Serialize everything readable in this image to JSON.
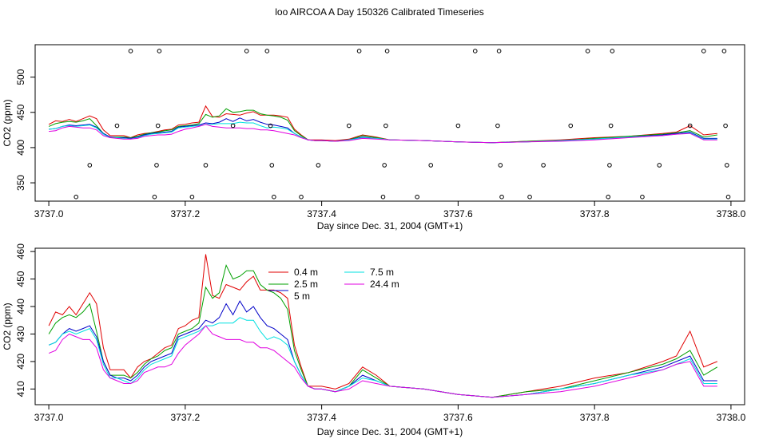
{
  "title": "loo AIRCOA A  Day 150326  Calibrated Timeseries",
  "colors": {
    "0.4 m": "#e00000",
    "2.5 m": "#00a000",
    "5 m": "#0000c8",
    "7.5 m": "#00e0e0",
    "24.4 m": "#e000e0",
    "markers": "#000000"
  },
  "chart_data": [
    {
      "type": "line",
      "panel": "top",
      "xlabel": "Day since Dec. 31, 2004 (GMT+1)",
      "ylabel": "CO2 (ppm)",
      "xlim": [
        3736.98,
        3738.02
      ],
      "ylim": [
        324,
        546
      ],
      "xticks": [
        3737.0,
        3737.2,
        3737.4,
        3737.6,
        3737.8,
        3738.0
      ],
      "xtick_labels": [
        "3737.0",
        "3737.2",
        "3737.4",
        "3737.6",
        "3737.8",
        "3738.0"
      ],
      "yticks": [
        350,
        400,
        450,
        500
      ],
      "ytick_labels": [
        "350",
        "400",
        "450",
        "500"
      ],
      "legend": false,
      "x": [
        3737.0,
        3737.01,
        3737.02,
        3737.03,
        3737.04,
        3737.05,
        3737.06,
        3737.07,
        3737.08,
        3737.09,
        3737.1,
        3737.11,
        3737.12,
        3737.13,
        3737.14,
        3737.15,
        3737.16,
        3737.17,
        3737.18,
        3737.19,
        3737.2,
        3737.21,
        3737.22,
        3737.23,
        3737.24,
        3737.25,
        3737.26,
        3737.27,
        3737.28,
        3737.29,
        3737.3,
        3737.31,
        3737.32,
        3737.33,
        3737.34,
        3737.35,
        3737.36,
        3737.37,
        3737.38,
        3737.39,
        3737.4,
        3737.42,
        3737.44,
        3737.46,
        3737.48,
        3737.5,
        3737.55,
        3737.6,
        3737.65,
        3737.7,
        3737.75,
        3737.8,
        3737.85,
        3737.9,
        3737.92,
        3737.94,
        3737.96,
        3737.98
      ],
      "series": [
        {
          "name": "0.4 m",
          "values": [
            433,
            438,
            437,
            440,
            437,
            441,
            445,
            441,
            425,
            417,
            417,
            417,
            414,
            418,
            420,
            421,
            423,
            425,
            426,
            432,
            433,
            435,
            436,
            459,
            444,
            443,
            448,
            447,
            446,
            449,
            451,
            446,
            446,
            446,
            445,
            443,
            426,
            418,
            411,
            411,
            411,
            410,
            412,
            418,
            415,
            411,
            410,
            408,
            407,
            409,
            411,
            414,
            416,
            420,
            422,
            431,
            418,
            420
          ]
        },
        {
          "name": "2.5 m",
          "values": [
            430,
            434,
            436,
            437,
            436,
            438,
            441,
            431,
            420,
            415,
            415,
            415,
            414,
            416,
            419,
            421,
            422,
            424,
            425,
            430,
            431,
            432,
            434,
            447,
            443,
            445,
            455,
            450,
            451,
            453,
            453,
            448,
            446,
            445,
            443,
            439,
            424,
            417,
            411,
            410,
            410,
            409,
            411,
            417,
            414,
            411,
            410,
            408,
            407,
            409,
            410,
            413,
            416,
            419,
            421,
            424,
            415,
            418
          ]
        },
        {
          "name": "5 m",
          "values": [
            426,
            427,
            430,
            432,
            431,
            432,
            433,
            429,
            420,
            415,
            414,
            414,
            413,
            415,
            418,
            420,
            421,
            422,
            423,
            429,
            430,
            431,
            432,
            435,
            434,
            436,
            441,
            437,
            442,
            438,
            440,
            436,
            433,
            432,
            430,
            428,
            420,
            415,
            411,
            410,
            410,
            409,
            411,
            415,
            413,
            411,
            410,
            408,
            407,
            408,
            410,
            412,
            415,
            418,
            420,
            422,
            413,
            413
          ]
        },
        {
          "name": "7.5 m",
          "values": [
            426,
            427,
            430,
            431,
            430,
            431,
            432,
            428,
            419,
            414,
            414,
            413,
            412,
            414,
            417,
            419,
            420,
            421,
            422,
            428,
            429,
            430,
            431,
            433,
            433,
            434,
            434,
            434,
            436,
            435,
            435,
            431,
            428,
            429,
            428,
            426,
            420,
            415,
            411,
            410,
            410,
            409,
            411,
            414,
            413,
            411,
            410,
            408,
            407,
            408,
            410,
            412,
            415,
            417,
            419,
            421,
            412,
            412
          ]
        },
        {
          "name": "24.4 m",
          "values": [
            423,
            424,
            428,
            430,
            429,
            428,
            428,
            425,
            417,
            414,
            413,
            412,
            412,
            413,
            416,
            417,
            418,
            418,
            419,
            423,
            426,
            428,
            430,
            433,
            430,
            429,
            428,
            428,
            428,
            427,
            427,
            425,
            425,
            424,
            422,
            420,
            418,
            414,
            411,
            410,
            410,
            409,
            410,
            413,
            412,
            411,
            410,
            408,
            407,
            408,
            409,
            411,
            414,
            417,
            419,
            420,
            411,
            411
          ]
        }
      ],
      "markers": {
        "x": [
          3737.04,
          3737.06,
          3737.1,
          3737.12,
          3737.155,
          3737.158,
          3737.16,
          3737.162,
          3737.21,
          3737.23,
          3737.27,
          3737.29,
          3737.32,
          3737.325,
          3737.327,
          3737.33,
          3737.37,
          3737.395,
          3737.44,
          3737.455,
          3737.49,
          3737.492,
          3737.494,
          3737.496,
          3737.54,
          3737.56,
          3737.6,
          3737.625,
          3737.66,
          3737.658,
          3737.662,
          3737.664,
          3737.705,
          3737.725,
          3737.765,
          3737.79,
          3737.82,
          3737.822,
          3737.824,
          3737.826,
          3737.87,
          3737.895,
          3737.94,
          3737.96,
          3737.99,
          3737.992,
          3737.994,
          3737.996
        ],
        "y": [
          330,
          375,
          431,
          537,
          330,
          375,
          431,
          537,
          330,
          375,
          431,
          537,
          537,
          431,
          375,
          330,
          330,
          375,
          431,
          537,
          330,
          375,
          431,
          537,
          330,
          375,
          431,
          537,
          537,
          431,
          375,
          330,
          330,
          375,
          431,
          537,
          330,
          375,
          431,
          537,
          330,
          375,
          431,
          537,
          537,
          431,
          375,
          330
        ]
      }
    },
    {
      "type": "line",
      "panel": "bottom",
      "xlabel": "Day since Dec. 31, 2004 (GMT+1)",
      "ylabel": "CO2 (ppm)",
      "xlim": [
        3736.98,
        3738.02
      ],
      "ylim": [
        404.3,
        461.2
      ],
      "xticks": [
        3737.0,
        3737.2,
        3737.4,
        3737.6,
        3737.8,
        3738.0
      ],
      "xtick_labels": [
        "3737.0",
        "3737.2",
        "3737.4",
        "3737.6",
        "3737.8",
        "3738.0"
      ],
      "yticks": [
        410,
        420,
        430,
        440,
        450,
        460
      ],
      "ytick_labels": [
        "410",
        "420",
        "430",
        "440",
        "450",
        "460"
      ],
      "legend": true,
      "legend_position": "top-center",
      "legend_entries": [
        "0.4 m",
        "2.5 m",
        "5 m",
        "7.5 m",
        "24.4 m"
      ],
      "series_ref": "top"
    }
  ]
}
